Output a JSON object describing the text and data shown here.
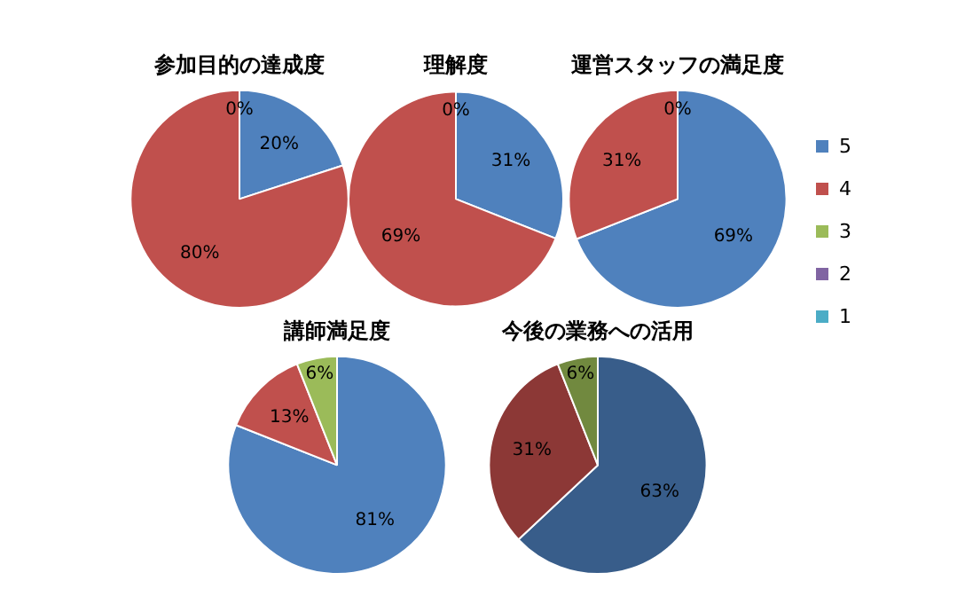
{
  "chart_data": [
    {
      "type": "pie",
      "title": "参加目的の達成度",
      "categories": [
        null,
        null,
        null,
        null,
        null
      ],
      "values": [
        20,
        80,
        0,
        0,
        0
      ],
      "colors": [
        "#4f81bd",
        "#c0504d",
        "#9bbb59",
        "#8064a2",
        "#4bacc6"
      ],
      "value_labels": [
        "20%",
        "80%",
        "0%",
        null,
        null
      ]
    },
    {
      "type": "pie",
      "title": "理解度",
      "categories": [
        null,
        null,
        null,
        null,
        null
      ],
      "values": [
        31,
        69,
        0,
        0,
        0
      ],
      "colors": [
        "#4f81bd",
        "#c0504d",
        "#9bbb59",
        "#8064a2",
        "#4bacc6"
      ],
      "value_labels": [
        "31%",
        "69%",
        "0%",
        null,
        null
      ]
    },
    {
      "type": "pie",
      "title": "運営スタッフの満足度",
      "categories": [
        "5",
        "4",
        "3",
        "2",
        "1"
      ],
      "values": [
        69,
        31,
        0,
        0,
        0
      ],
      "colors": [
        "#4f81bd",
        "#c0504d",
        "#9bbb59",
        "#8064a2",
        "#4bacc6"
      ],
      "value_labels": [
        "69%",
        "31%",
        "0%",
        null,
        null
      ],
      "legend": "right"
    },
    {
      "type": "pie",
      "title": "講師満足度",
      "categories": [
        null,
        null,
        null,
        null,
        null
      ],
      "values": [
        81,
        13,
        6,
        0,
        0
      ],
      "colors": [
        "#4f81bd",
        "#c0504d",
        "#9bbb59",
        "#8064a2",
        "#4bacc6"
      ],
      "value_labels": [
        "81%",
        "13%",
        "6%",
        null,
        null
      ]
    },
    {
      "type": "pie",
      "title": "今後の業務への活用",
      "categories": [
        null,
        null,
        null,
        null,
        null
      ],
      "values": [
        63,
        31,
        6,
        0,
        0
      ],
      "colors": [
        "#385d8a",
        "#8c3836",
        "#71893f",
        "#5c4776",
        "#357d91"
      ],
      "value_labels": [
        "63%",
        "31%",
        "6%",
        null,
        null
      ]
    }
  ]
}
